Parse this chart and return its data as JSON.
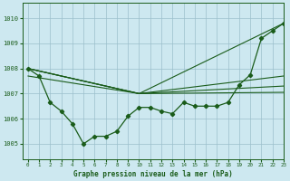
{
  "title": "Graphe pression niveau de la mer (hPa)",
  "xlim": [
    -0.5,
    23
  ],
  "ylim": [
    1004.4,
    1010.6
  ],
  "yticks": [
    1005,
    1006,
    1007,
    1008,
    1009,
    1010
  ],
  "xticks": [
    0,
    1,
    2,
    3,
    4,
    5,
    6,
    7,
    8,
    9,
    10,
    11,
    12,
    13,
    14,
    15,
    16,
    17,
    18,
    19,
    20,
    21,
    22,
    23
  ],
  "bg_color": "#cde8f0",
  "grid_color": "#9bbfcc",
  "line_color": "#1a5c1a",
  "line1_x": [
    0,
    1,
    2,
    3,
    4,
    5,
    6,
    7,
    8,
    9,
    10,
    11,
    12,
    13,
    14,
    15,
    16,
    17,
    18,
    19,
    20,
    21,
    22,
    23
  ],
  "line1_y": [
    1008.0,
    1007.7,
    1006.65,
    1006.3,
    1005.8,
    1005.0,
    1005.3,
    1005.3,
    1005.5,
    1006.1,
    1006.45,
    1006.45,
    1006.3,
    1006.2,
    1006.65,
    1006.5,
    1006.5,
    1006.5,
    1006.65,
    1007.35,
    1007.75,
    1009.2,
    1009.5,
    1009.8
  ],
  "straight_lines": [
    {
      "x": [
        0,
        10,
        23
      ],
      "y": [
        1008.0,
        1007.0,
        1009.8
      ]
    },
    {
      "x": [
        0,
        10,
        23
      ],
      "y": [
        1008.0,
        1007.0,
        1007.7
      ]
    },
    {
      "x": [
        0,
        10,
        23
      ],
      "y": [
        1008.0,
        1007.0,
        1007.3
      ]
    },
    {
      "x": [
        0,
        10,
        23
      ],
      "y": [
        1007.7,
        1007.0,
        1007.05
      ]
    }
  ],
  "figsize": [
    3.2,
    2.0
  ],
  "dpi": 100
}
